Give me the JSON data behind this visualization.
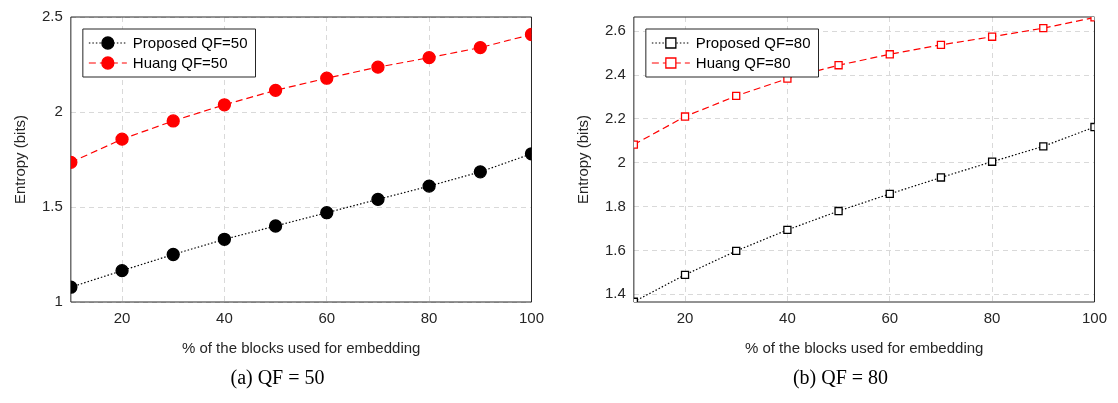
{
  "chart_data": [
    {
      "type": "line",
      "title": "(a) QF = 50",
      "xlabel": "% of the blocks used for embedding",
      "ylabel": "Entropy (bits)",
      "x": [
        10,
        20,
        30,
        40,
        50,
        60,
        70,
        80,
        90,
        100
      ],
      "xlim": [
        10,
        100
      ],
      "xticks": [
        20,
        40,
        60,
        80,
        100
      ],
      "ylim": [
        1,
        2.5
      ],
      "yticks": [
        1,
        1.5,
        2,
        2.5
      ],
      "grid": true,
      "legend": "top left",
      "marker": "circle",
      "series": [
        {
          "name": "Proposed QF=50",
          "color": "#000000",
          "line_style": "dotted",
          "values": [
            1.078,
            1.165,
            1.25,
            1.33,
            1.4,
            1.47,
            1.54,
            1.61,
            1.685,
            1.78
          ]
        },
        {
          "name": "Huang QF=50",
          "color": "#ff0000",
          "line_style": "dashed",
          "values": [
            1.735,
            1.857,
            1.953,
            2.038,
            2.114,
            2.178,
            2.236,
            2.286,
            2.339,
            2.408
          ]
        }
      ]
    },
    {
      "type": "line",
      "title": "(b) QF = 80",
      "xlabel": "% of the blocks used for embedding",
      "ylabel": "Entropy (bits)",
      "x": [
        10,
        20,
        30,
        40,
        50,
        60,
        70,
        80,
        90,
        100
      ],
      "xlim": [
        10,
        100
      ],
      "xticks": [
        20,
        40,
        60,
        80,
        100
      ],
      "ylim": [
        1.365,
        2.665
      ],
      "yticks": [
        1.4,
        1.6,
        1.8,
        2,
        2.2,
        2.4,
        2.6
      ],
      "grid": true,
      "legend": "top left",
      "marker": "square",
      "series": [
        {
          "name": "Proposed QF=80",
          "color": "#000000",
          "line_style": "dotted",
          "values": [
            1.366,
            1.489,
            1.598,
            1.694,
            1.78,
            1.858,
            1.933,
            2.005,
            2.075,
            2.163
          ]
        },
        {
          "name": "Huang QF=80",
          "color": "#ff0000",
          "line_style": "dashed",
          "values": [
            2.083,
            2.211,
            2.305,
            2.384,
            2.445,
            2.495,
            2.538,
            2.575,
            2.614,
            2.663
          ]
        }
      ]
    }
  ]
}
